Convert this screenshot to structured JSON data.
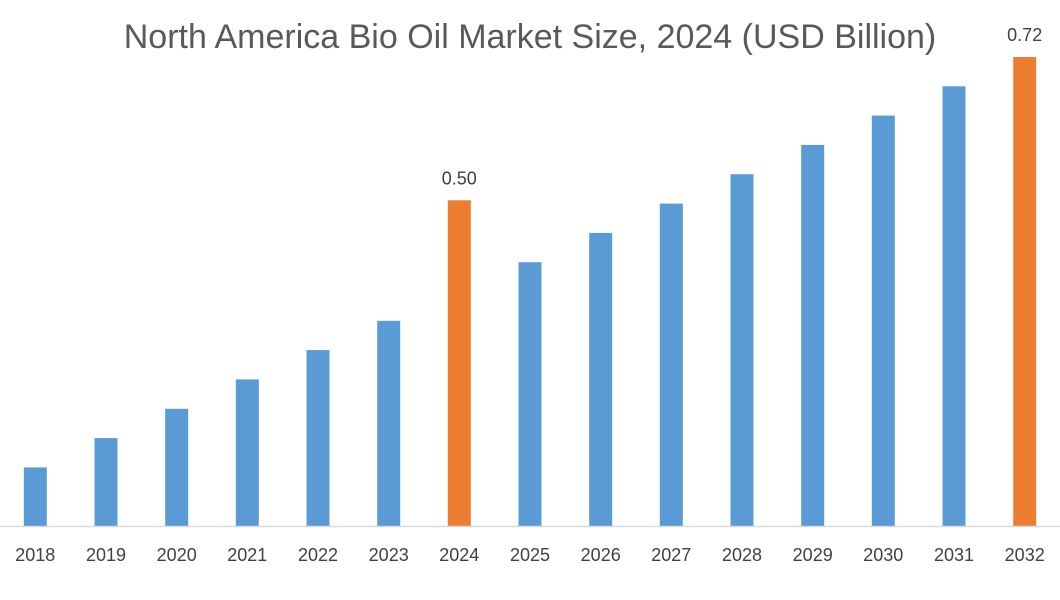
{
  "chart_data": {
    "type": "bar",
    "title": "North America Bio Oil Market Size, 2024 (USD Billion)",
    "xlabel": "",
    "ylabel": "",
    "categories": [
      "2018",
      "2019",
      "2020",
      "2021",
      "2022",
      "2023",
      "2024",
      "2025",
      "2026",
      "2027",
      "2028",
      "2029",
      "2030",
      "2031",
      "2032"
    ],
    "values": [
      0.09,
      0.135,
      0.18,
      0.225,
      0.27,
      0.315,
      0.5,
      0.405,
      0.45,
      0.495,
      0.54,
      0.585,
      0.63,
      0.675,
      0.72
    ],
    "data_labels": {
      "2024": "0.50",
      "2032": "0.72"
    },
    "highlighted": [
      "2024",
      "2032"
    ],
    "ylim": [
      0,
      0.8
    ],
    "grid": false,
    "legend": "none",
    "colors": {
      "bar": "#5B9BD5",
      "highlight": "#ED7D31",
      "axis": "#D9D9D9"
    }
  }
}
